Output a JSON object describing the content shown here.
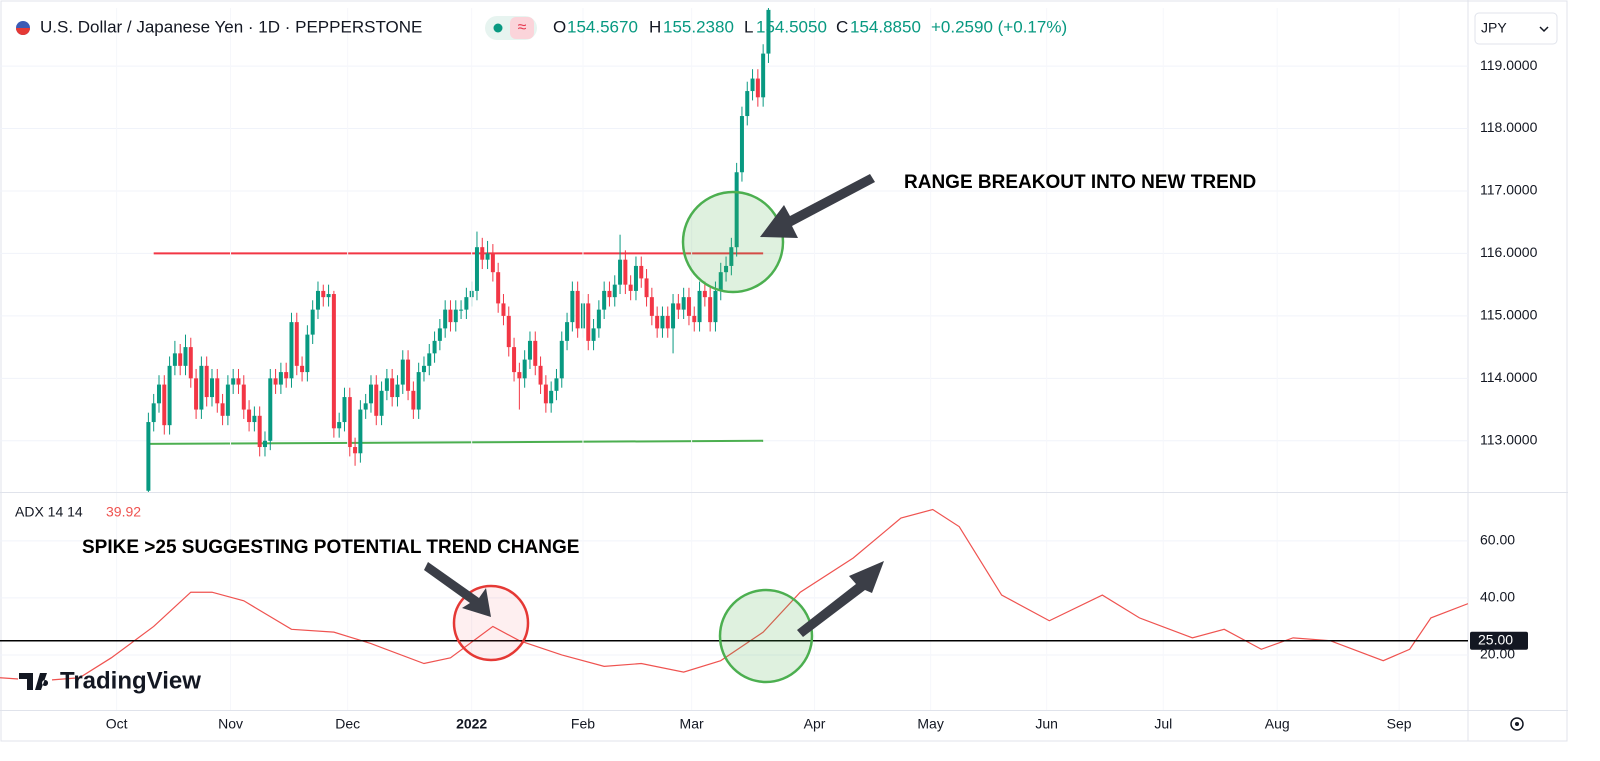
{
  "header": {
    "symbol": "U.S. Dollar / Japanese Yen · 1D · PEPPERSTONE",
    "o_label": "O",
    "open": "154.5670",
    "h_label": "H",
    "high": "155.2380",
    "l_label": "L",
    "low": "154.5050",
    "c_label": "C",
    "close": "154.8850",
    "change": "+0.2590 (+0.17%)",
    "currency": "JPY",
    "logo": "TradingView"
  },
  "chart_data": [
    {
      "type": "candlestick",
      "annotation": "RANGE BREAKOUT INTO NEW TREND",
      "up_color": "#089981",
      "down_color": "#f23645",
      "xlim": [
        -22,
        255
      ],
      "ylim": [
        112.18,
        119.93
      ],
      "yticks": [
        {
          "value": 113,
          "label": "113.0000"
        },
        {
          "value": 114,
          "label": "114.0000"
        },
        {
          "value": 115,
          "label": "115.0000"
        },
        {
          "value": 116,
          "label": "116.0000"
        },
        {
          "value": 117,
          "label": "117.0000"
        },
        {
          "value": 118,
          "label": "118.0000"
        },
        {
          "value": 119,
          "label": "119.0000"
        }
      ],
      "lines": [
        {
          "color": "#f23645",
          "x": [
            7,
            122
          ],
          "y": [
            116,
            116
          ]
        },
        {
          "color": "#4caf50",
          "x": [
            6,
            122
          ],
          "y": [
            112.95,
            113
          ]
        }
      ],
      "x": [
        6,
        7,
        8,
        9,
        10,
        11,
        12,
        13,
        14,
        15,
        16,
        17,
        18,
        19,
        20,
        21,
        22,
        23,
        24,
        25,
        26,
        27,
        28,
        29,
        30,
        31,
        32,
        33,
        34,
        35,
        36,
        37,
        38,
        39,
        40,
        41,
        42,
        43,
        44,
        45,
        46,
        47,
        48,
        49,
        50,
        51,
        52,
        53,
        54,
        55,
        56,
        57,
        58,
        59,
        60,
        61,
        62,
        63,
        64,
        65,
        66,
        67,
        68,
        69,
        70,
        71,
        72,
        73,
        74,
        75,
        76,
        77,
        78,
        79,
        80,
        81,
        82,
        83,
        84,
        85,
        86,
        87,
        88,
        89,
        90,
        91,
        92,
        93,
        94,
        95,
        96,
        97,
        98,
        99,
        100,
        101,
        102,
        103,
        104,
        105,
        106,
        107,
        108,
        109,
        110,
        111,
        112,
        113,
        114,
        115,
        116,
        117,
        118,
        119,
        120,
        121,
        122,
        123
      ],
      "ohlc": [
        [
          112.2,
          113.45,
          112.15,
          113.3
        ],
        [
          113.3,
          113.75,
          113.15,
          113.6
        ],
        [
          113.6,
          114.05,
          113.45,
          113.9
        ],
        [
          113.9,
          114.05,
          113.1,
          113.25
        ],
        [
          113.25,
          114.35,
          113.1,
          114.2
        ],
        [
          114.2,
          114.6,
          114.05,
          114.4
        ],
        [
          114.4,
          114.55,
          114.05,
          114.2
        ],
        [
          114.2,
          114.7,
          114.05,
          114.5
        ],
        [
          114.5,
          114.65,
          113.85,
          114.0
        ],
        [
          114.0,
          114.15,
          113.35,
          113.5
        ],
        [
          113.5,
          114.35,
          113.35,
          114.2
        ],
        [
          114.2,
          114.35,
          113.55,
          113.7
        ],
        [
          113.7,
          114.15,
          113.55,
          114.0
        ],
        [
          114.0,
          114.15,
          113.45,
          113.6
        ],
        [
          113.6,
          113.75,
          113.25,
          113.4
        ],
        [
          113.4,
          114.05,
          113.25,
          113.9
        ],
        [
          113.9,
          114.15,
          113.75,
          114.0
        ],
        [
          114.0,
          114.15,
          113.75,
          113.9
        ],
        [
          113.9,
          114.05,
          113.35,
          113.5
        ],
        [
          113.5,
          113.65,
          113.15,
          113.3
        ],
        [
          113.3,
          113.55,
          113.15,
          113.4
        ],
        [
          113.4,
          113.55,
          112.75,
          112.9
        ],
        [
          112.9,
          113.15,
          112.75,
          113.0
        ],
        [
          113.0,
          114.15,
          112.85,
          114.0
        ],
        [
          114.0,
          114.15,
          113.75,
          113.9
        ],
        [
          113.9,
          114.25,
          113.75,
          114.1
        ],
        [
          114.1,
          114.25,
          113.85,
          114.0
        ],
        [
          114.0,
          115.05,
          113.85,
          114.9
        ],
        [
          114.9,
          115.05,
          114.05,
          114.2
        ],
        [
          114.2,
          114.35,
          113.95,
          114.1
        ],
        [
          114.1,
          114.85,
          113.95,
          114.7
        ],
        [
          114.7,
          115.25,
          114.55,
          115.1
        ],
        [
          115.1,
          115.55,
          114.95,
          115.4
        ],
        [
          115.4,
          115.5,
          115.15,
          115.3
        ],
        [
          115.3,
          115.5,
          115.15,
          115.35
        ],
        [
          115.35,
          115.4,
          113.05,
          113.2
        ],
        [
          113.2,
          113.45,
          113.05,
          113.3
        ],
        [
          113.3,
          113.85,
          113.15,
          113.7
        ],
        [
          113.7,
          113.85,
          112.75,
          112.9
        ],
        [
          112.9,
          113.05,
          112.6,
          112.8
        ],
        [
          112.8,
          113.65,
          112.65,
          113.5
        ],
        [
          113.5,
          113.75,
          113.35,
          113.6
        ],
        [
          113.6,
          114.05,
          113.45,
          113.9
        ],
        [
          113.9,
          114.05,
          113.25,
          113.4
        ],
        [
          113.4,
          113.95,
          113.25,
          113.8
        ],
        [
          113.8,
          114.15,
          113.65,
          114.0
        ],
        [
          114.0,
          114.15,
          113.55,
          113.7
        ],
        [
          113.7,
          114.05,
          113.55,
          113.9
        ],
        [
          113.9,
          114.45,
          113.75,
          114.3
        ],
        [
          114.3,
          114.45,
          113.65,
          113.8
        ],
        [
          113.8,
          113.95,
          113.35,
          113.5
        ],
        [
          113.5,
          114.25,
          113.35,
          114.1
        ],
        [
          114.1,
          114.35,
          113.95,
          114.2
        ],
        [
          114.2,
          114.55,
          114.05,
          114.4
        ],
        [
          114.4,
          114.75,
          114.25,
          114.6
        ],
        [
          114.6,
          114.95,
          114.45,
          114.8
        ],
        [
          114.8,
          115.25,
          114.65,
          115.1
        ],
        [
          115.1,
          115.25,
          114.75,
          114.9
        ],
        [
          114.9,
          115.25,
          114.75,
          115.1
        ],
        [
          115.1,
          115.25,
          114.95,
          115.1
        ],
        [
          115.1,
          115.45,
          114.95,
          115.3
        ],
        [
          115.3,
          115.55,
          115.15,
          115.4
        ],
        [
          115.4,
          116.35,
          115.25,
          116.1
        ],
        [
          116.1,
          116.25,
          115.75,
          115.9
        ],
        [
          115.9,
          116.2,
          115.75,
          116.0
        ],
        [
          116.0,
          116.15,
          115.55,
          115.7
        ],
        [
          115.7,
          115.85,
          115.05,
          115.2
        ],
        [
          115.2,
          115.35,
          114.85,
          115.0
        ],
        [
          115.0,
          115.15,
          114.35,
          114.5
        ],
        [
          114.5,
          114.65,
          113.95,
          114.1
        ],
        [
          114.1,
          114.25,
          113.5,
          114.0
        ],
        [
          114.0,
          114.45,
          113.85,
          114.3
        ],
        [
          114.3,
          114.75,
          114.15,
          114.6
        ],
        [
          114.6,
          114.75,
          114.05,
          114.2
        ],
        [
          114.2,
          114.35,
          113.75,
          113.9
        ],
        [
          113.9,
          114.05,
          113.45,
          113.6
        ],
        [
          113.6,
          113.95,
          113.45,
          113.8
        ],
        [
          113.8,
          114.15,
          113.65,
          114.0
        ],
        [
          114.0,
          114.75,
          113.85,
          114.6
        ],
        [
          114.6,
          115.05,
          114.45,
          114.9
        ],
        [
          114.9,
          115.55,
          114.75,
          115.4
        ],
        [
          115.4,
          115.55,
          114.65,
          114.8
        ],
        [
          114.8,
          115.35,
          114.65,
          115.2
        ],
        [
          115.2,
          115.35,
          114.45,
          114.6
        ],
        [
          114.6,
          114.95,
          114.45,
          114.8
        ],
        [
          114.8,
          115.25,
          114.65,
          115.1
        ],
        [
          115.1,
          115.55,
          114.95,
          115.4
        ],
        [
          115.4,
          115.55,
          115.15,
          115.3
        ],
        [
          115.3,
          115.65,
          115.15,
          115.5
        ],
        [
          115.5,
          116.3,
          115.35,
          115.9
        ],
        [
          115.9,
          116.05,
          115.35,
          115.5
        ],
        [
          115.5,
          115.65,
          115.25,
          115.4
        ],
        [
          115.4,
          115.95,
          115.25,
          115.8
        ],
        [
          115.8,
          115.95,
          115.45,
          115.6
        ],
        [
          115.6,
          115.75,
          115.15,
          115.3
        ],
        [
          115.3,
          115.45,
          114.85,
          115.0
        ],
        [
          115.0,
          115.15,
          114.65,
          114.8
        ],
        [
          114.8,
          115.15,
          114.65,
          115.0
        ],
        [
          115.0,
          115.15,
          114.65,
          114.8
        ],
        [
          114.8,
          115.35,
          114.4,
          115.2
        ],
        [
          115.2,
          115.35,
          114.95,
          115.1
        ],
        [
          115.1,
          115.45,
          114.95,
          115.3
        ],
        [
          115.3,
          115.45,
          114.85,
          115.0
        ],
        [
          115.0,
          115.15,
          114.75,
          114.9
        ],
        [
          114.9,
          115.55,
          114.75,
          115.4
        ],
        [
          115.4,
          115.55,
          115.15,
          115.3
        ],
        [
          115.3,
          115.45,
          114.75,
          114.9
        ],
        [
          114.9,
          115.55,
          114.75,
          115.4
        ],
        [
          115.4,
          115.85,
          115.25,
          115.7
        ],
        [
          115.7,
          115.95,
          115.55,
          115.8
        ],
        [
          115.8,
          116.25,
          115.65,
          116.1
        ],
        [
          116.1,
          117.45,
          115.95,
          117.3
        ],
        [
          117.3,
          118.35,
          117.15,
          118.2
        ],
        [
          118.2,
          118.75,
          118.05,
          118.6
        ],
        [
          118.6,
          118.95,
          118.45,
          118.8
        ],
        [
          118.8,
          118.95,
          118.35,
          118.5
        ],
        [
          118.5,
          119.35,
          118.35,
          119.2
        ],
        [
          119.2,
          120.1,
          119.05,
          119.9
        ]
      ]
    },
    {
      "type": "line",
      "title": "ADX 14 14",
      "current_value": 39.92,
      "annotation": "SPIKE >25 SUGGESTING POTENTIAL TREND CHANGE",
      "xlim": [
        -22,
        255
      ],
      "ylim": [
        0.7,
        76.8
      ],
      "yticks": [
        {
          "value": 20,
          "label": "20.00"
        },
        {
          "value": 40,
          "label": "40.00"
        },
        {
          "value": 60,
          "label": "60.00"
        }
      ],
      "hline": {
        "value": 25,
        "label": "25.00"
      },
      "xticks": [
        {
          "value": 0,
          "label": "Oct"
        },
        {
          "value": 21.5,
          "label": "Nov"
        },
        {
          "value": 43.6,
          "label": "Dec"
        },
        {
          "value": 67,
          "label": "2022"
        },
        {
          "value": 88,
          "label": "Feb"
        },
        {
          "value": 108.5,
          "label": "Mar"
        },
        {
          "value": 131.7,
          "label": "Apr"
        },
        {
          "value": 153.6,
          "label": "May"
        },
        {
          "value": 175.5,
          "label": "Jun"
        },
        {
          "value": 197.5,
          "label": "Jul"
        },
        {
          "value": 219,
          "label": "Aug"
        },
        {
          "value": 242,
          "label": "Sep"
        }
      ],
      "series": [
        {
          "color": "#ef5350",
          "x": [
            -22,
            -14,
            -7,
            -1,
            7,
            14,
            18,
            24,
            33,
            41,
            48,
            58,
            63,
            71,
            76,
            84,
            92,
            99,
            107,
            114,
            122,
            129,
            139,
            148,
            154,
            159,
            167,
            176,
            186,
            193,
            203,
            209,
            216,
            222,
            229,
            239,
            244,
            248,
            255
          ],
          "values": [
            12,
            11,
            12,
            19,
            30,
            42,
            42,
            39,
            29,
            28,
            24,
            17,
            19,
            30,
            25,
            20,
            16,
            17,
            14,
            18,
            28,
            42,
            54,
            68,
            71,
            65,
            41,
            32,
            41,
            33,
            26,
            29,
            22,
            26,
            25,
            18,
            22,
            33,
            38
          ]
        }
      ]
    }
  ]
}
